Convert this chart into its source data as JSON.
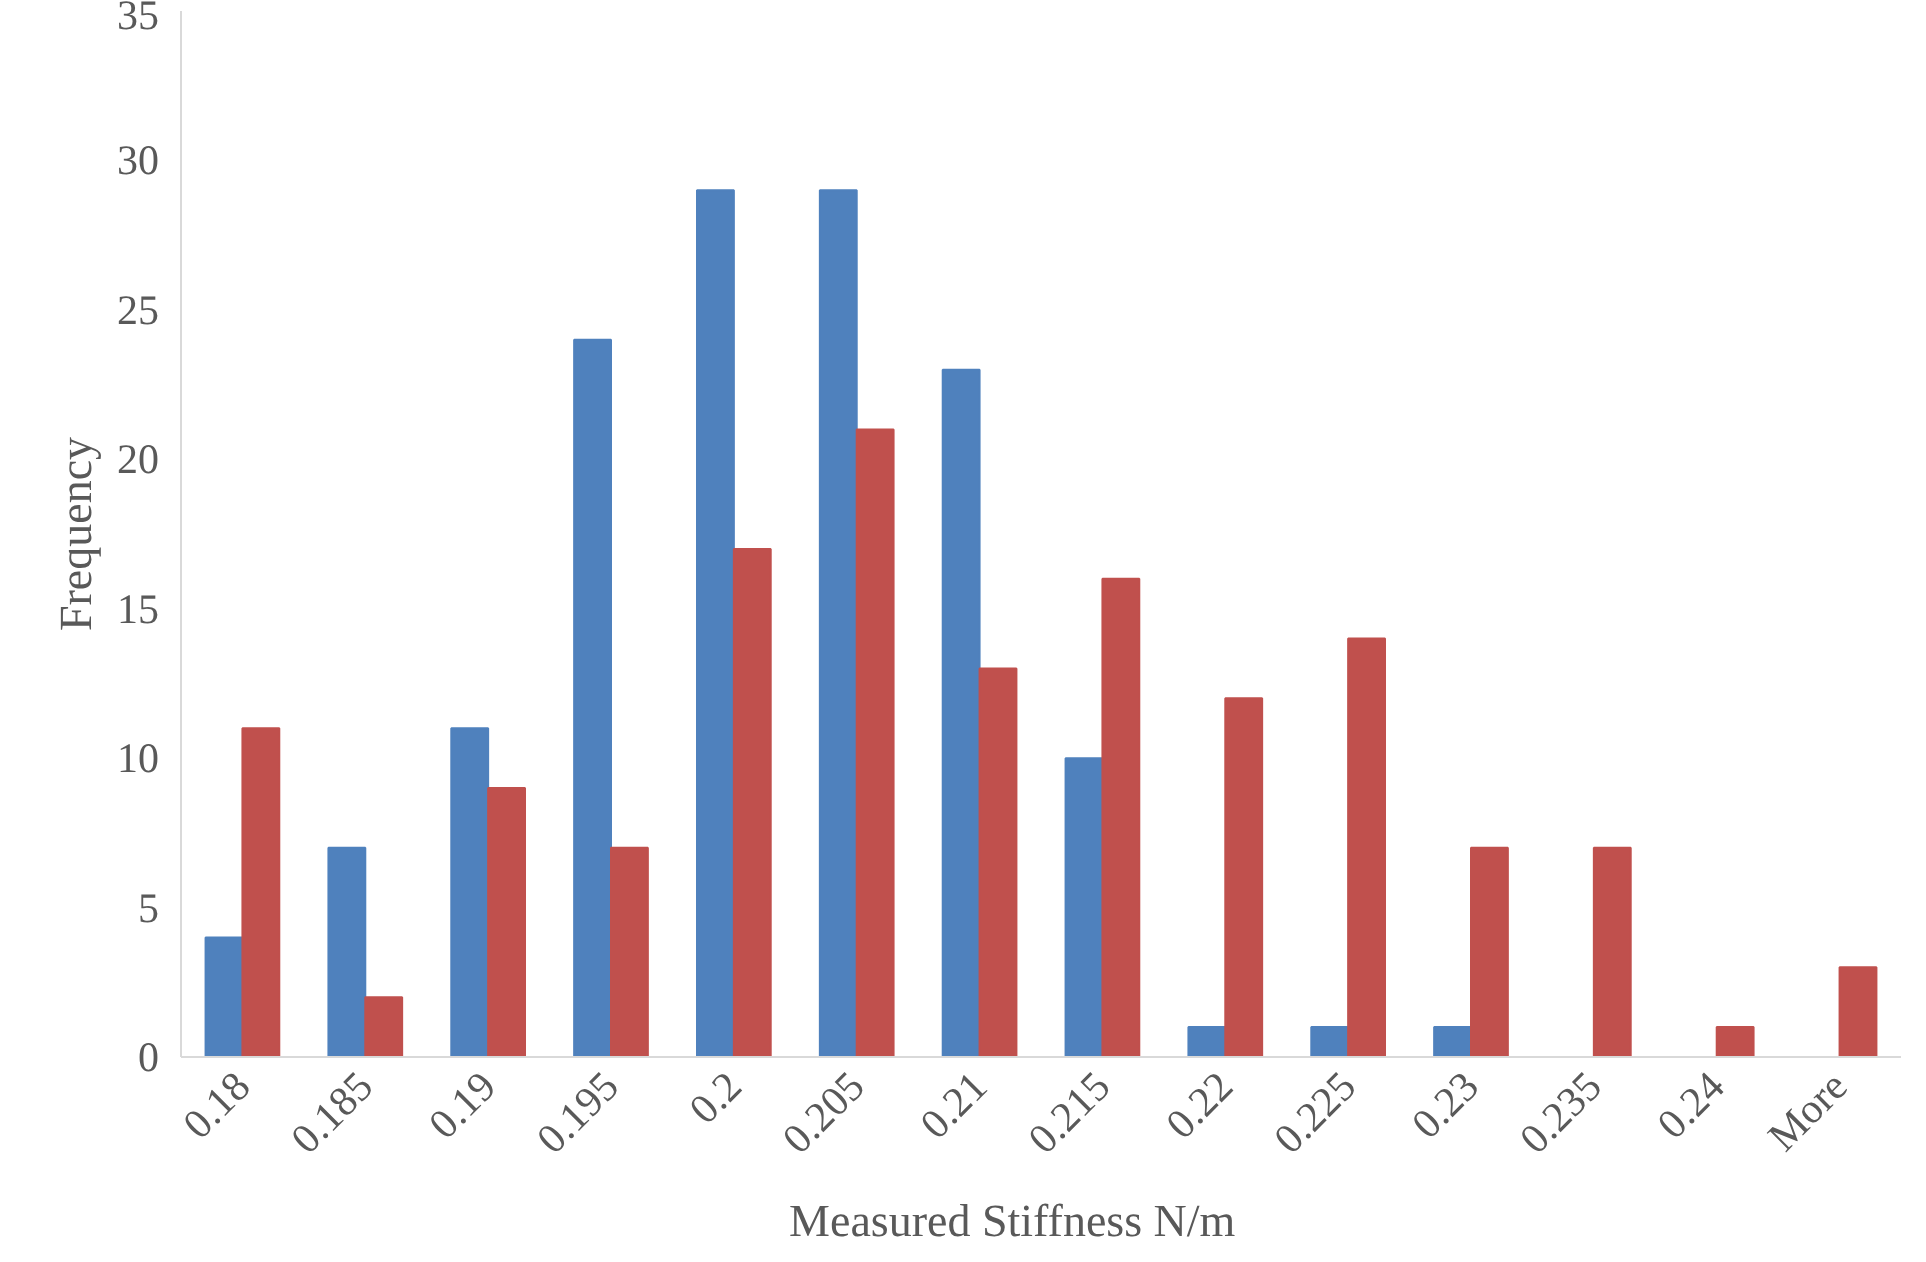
{
  "chart_data": {
    "type": "bar",
    "xlabel": "Measured Stiffness      N/m",
    "ylabel": "Frequency",
    "categories": [
      "0.18",
      "0.185",
      "0.19",
      "0.195",
      "0.2",
      "0.205",
      "0.21",
      "0.215",
      "0.22",
      "0.225",
      "0.23",
      "0.235",
      "0.24",
      "More"
    ],
    "series": [
      {
        "color": "#4f81bd",
        "values": [
          4,
          7,
          11,
          24,
          29,
          29,
          23,
          10,
          1,
          1,
          1,
          0,
          0,
          0
        ]
      },
      {
        "color": "#c0504d",
        "values": [
          11,
          2,
          9,
          7,
          17,
          21,
          13,
          16,
          12,
          14,
          7,
          7,
          1,
          3
        ]
      }
    ],
    "ylim": [
      0,
      35
    ],
    "yticks": [
      0,
      5,
      10,
      15,
      20,
      25,
      30,
      35
    ],
    "grid": false
  }
}
